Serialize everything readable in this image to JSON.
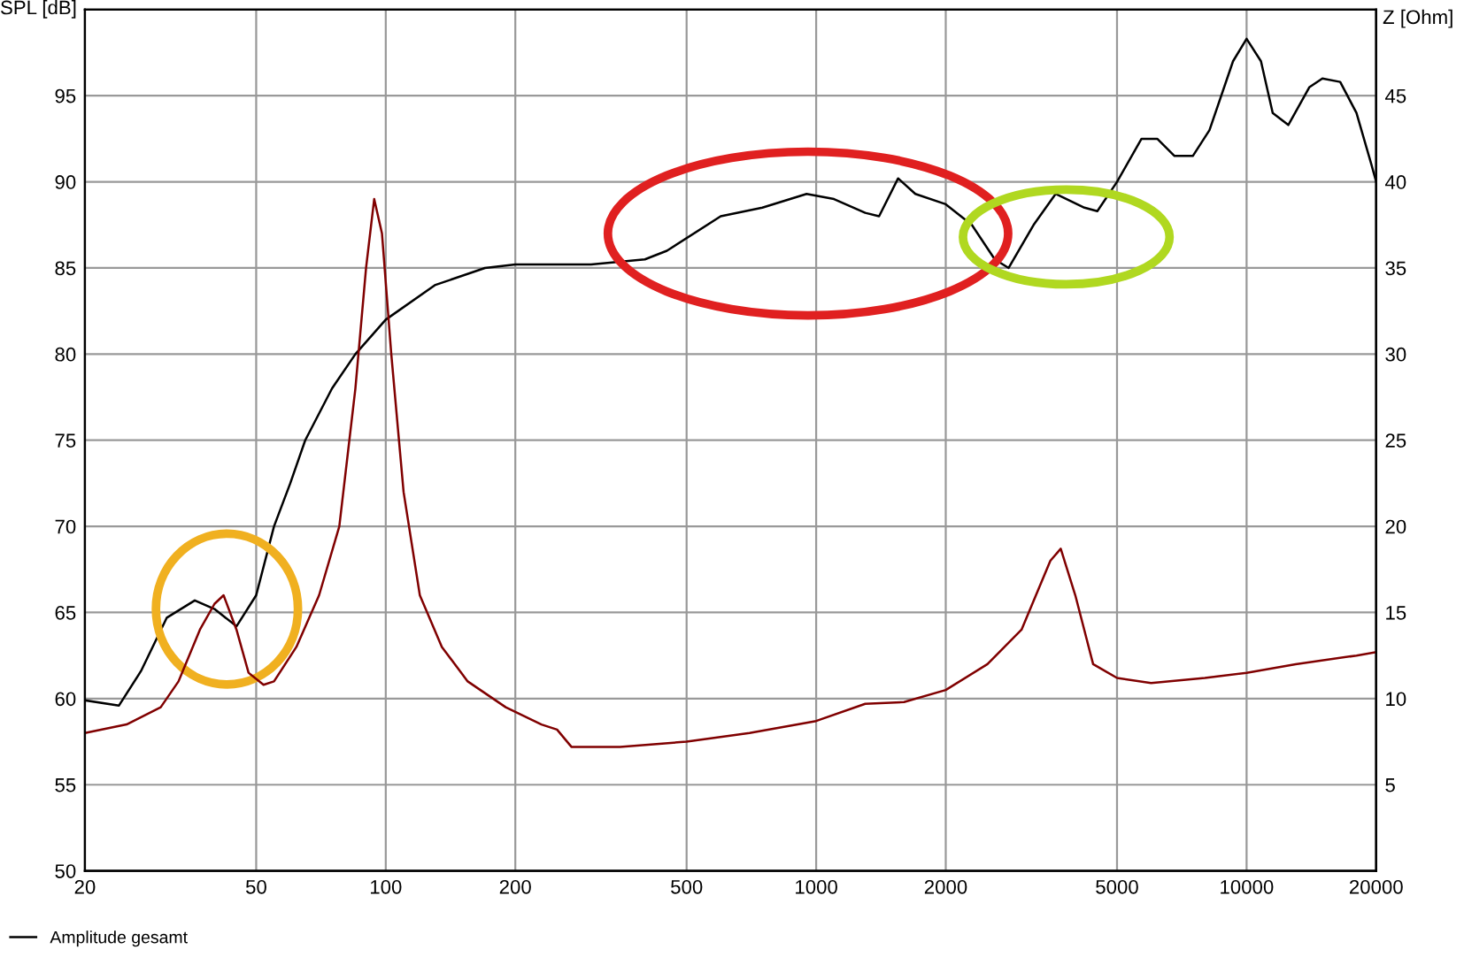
{
  "chart_data": {
    "type": "line",
    "ylabel": "SPL [dB]",
    "y2label": "Z [Ohm]",
    "log": "x",
    "xlim": [
      20,
      20000
    ],
    "xticks": [
      20,
      50,
      100,
      200,
      500,
      1000,
      2000,
      5000,
      10000,
      20000
    ],
    "ylim": [
      50,
      100
    ],
    "yticks": [
      50,
      55,
      60,
      65,
      70,
      75,
      80,
      85,
      90,
      95,
      {
        "value": 100,
        "label": null
      }
    ],
    "y2lim": [
      0,
      50
    ],
    "y2ticks": [
      5,
      10,
      15,
      20,
      25,
      30,
      35,
      40,
      45
    ],
    "grid": true,
    "legend": "bottom left",
    "marker": "none",
    "line_style": "solid",
    "series": [
      {
        "name": "Amplitude gesamt",
        "color": "#000000",
        "x": [
          20,
          24,
          27,
          31,
          36,
          40,
          45,
          50,
          55,
          60,
          65,
          75,
          85,
          100,
          130,
          170,
          200,
          300,
          400,
          450,
          600,
          750,
          950,
          1100,
          1300,
          1400,
          1550,
          1700,
          2000,
          2300,
          2600,
          2800,
          3200,
          3600,
          4200,
          4500,
          5000,
          5700,
          6200,
          6800,
          7500,
          8200,
          9300,
          10000,
          10800,
          11500,
          12500,
          14000,
          15000,
          16500,
          18000,
          19500,
          20000
        ],
        "values": [
          59.9,
          59.6,
          61.6,
          64.7,
          65.7,
          65.2,
          64.2,
          66,
          70,
          72.5,
          75,
          78,
          80,
          82,
          84,
          85,
          85.2,
          85.2,
          85.5,
          86,
          88,
          88.5,
          89.3,
          89,
          88.2,
          88,
          90.2,
          89.3,
          88.7,
          87.5,
          85.5,
          85,
          87.5,
          89.3,
          88.5,
          88.3,
          90,
          92.5,
          92.5,
          91.5,
          91.5,
          93,
          97,
          98.3,
          97,
          94,
          93.3,
          95.5,
          96,
          95.8,
          94,
          91,
          90
        ]
      },
      {
        "axis": "y2",
        "color": "#800000",
        "x": [
          20,
          25,
          30,
          33,
          37,
          40,
          42,
          45,
          48,
          52,
          55,
          62,
          70,
          78,
          85,
          90,
          94,
          98,
          103,
          110,
          120,
          135,
          155,
          190,
          230,
          250,
          270,
          350,
          500,
          700,
          1000,
          1300,
          1600,
          2000,
          2500,
          3000,
          3500,
          3700,
          4000,
          4400,
          5000,
          6000,
          8000,
          10000,
          13000,
          18000,
          20000
        ],
        "values": [
          8,
          8.5,
          9.5,
          11,
          14,
          15.5,
          16,
          14,
          11.5,
          10.8,
          11,
          13,
          16,
          20,
          28,
          35,
          39,
          37,
          30,
          22,
          16,
          13,
          11,
          9.5,
          8.5,
          8.2,
          7.2,
          7.2,
          7.5,
          8,
          8.7,
          9.7,
          9.8,
          10.5,
          12,
          14,
          18,
          18.7,
          16,
          12,
          11.2,
          10.9,
          11.2,
          11.5,
          12,
          12.5,
          12.7
        ]
      }
    ]
  }
}
